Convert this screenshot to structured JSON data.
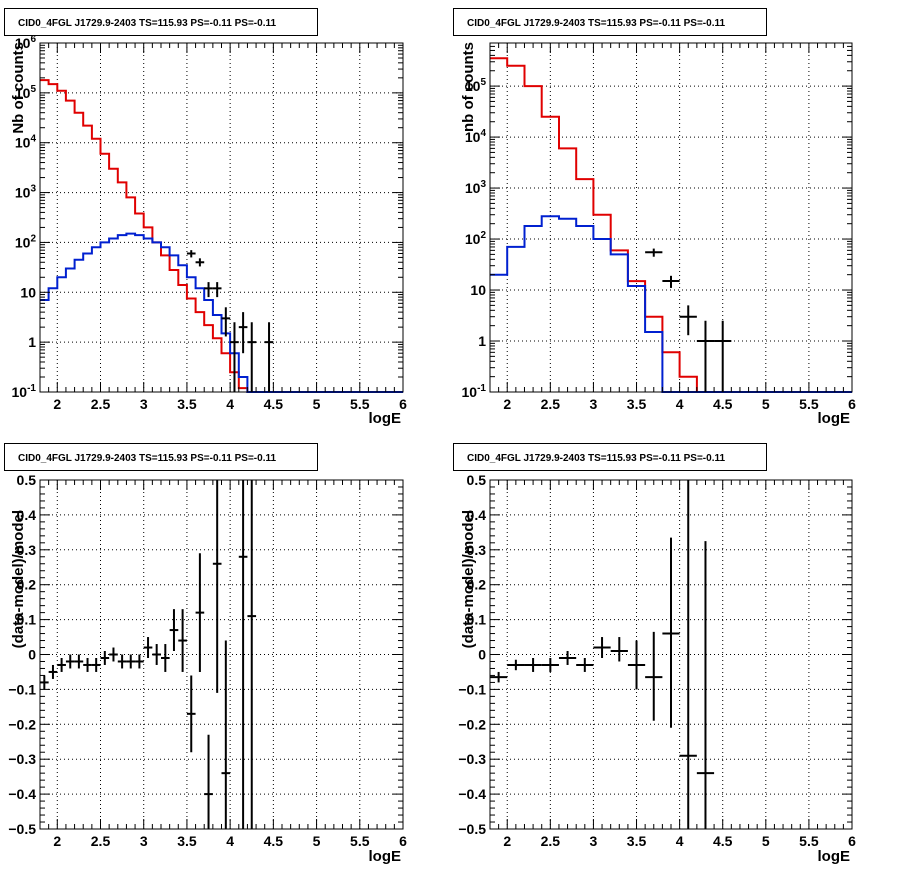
{
  "panels": [
    {
      "title": "CID0_4FGL J1729.9-2403 TS=115.93 PS=-0.11 PS=-0.11",
      "xlabel": "logE",
      "ylabel": "Nb of counts"
    },
    {
      "title": "CID0_4FGL J1729.9-2403 TS=115.93 PS=-0.11 PS=-0.11",
      "xlabel": "logE",
      "ylabel": "nb of counts"
    },
    {
      "title": "CID0_4FGL J1729.9-2403 TS=115.93 PS=-0.11 PS=-0.11",
      "xlabel": "logE",
      "ylabel": "(data-model)/model"
    },
    {
      "title": "CID0_4FGL J1729.9-2403 TS=115.93 PS=-0.11 PS=-0.11",
      "xlabel": "logE",
      "ylabel": "(data-model)/model"
    }
  ],
  "colors": {
    "total_model": "#e00000",
    "source_model": "#0020d0",
    "data": "#000000",
    "grid": "#000000"
  },
  "chart_data": [
    {
      "type": "step-histogram",
      "title": "CID0_4FGL J1729.9-2403 TS=115.93 PS=-0.11 PS=-0.11",
      "xlabel": "logE",
      "ylabel": "Nb of counts",
      "xlim": [
        1.8,
        6.0
      ],
      "ylim": [
        0.1,
        1000000
      ],
      "yscale": "log",
      "grid": true,
      "x_ticks": [
        2,
        2.5,
        3,
        3.5,
        4,
        4.5,
        5,
        5.5,
        6
      ],
      "x_tick_labels": [
        "2",
        "2.5",
        "3",
        "3.5",
        "4",
        "4.5",
        "5",
        "5.5",
        "6"
      ],
      "y_ticks": [
        0.1,
        1,
        10,
        100,
        1000,
        10000,
        100000,
        1000000
      ],
      "y_tick_labels": [
        "10^-1",
        "1",
        "10",
        "10^2",
        "10^3",
        "10^4",
        "10^5",
        "10^6"
      ],
      "bin_edges": [
        1.8,
        1.9,
        2.0,
        2.1,
        2.2,
        2.3,
        2.4,
        2.5,
        2.6,
        2.7,
        2.8,
        2.9,
        3.0,
        3.1,
        3.2,
        3.3,
        3.4,
        3.5,
        3.6,
        3.7,
        3.8,
        3.9,
        4.0,
        4.1,
        4.2,
        4.3,
        4.4,
        4.5,
        4.6,
        4.7,
        4.8,
        4.9,
        5.0,
        5.1,
        5.2,
        5.3,
        5.4,
        5.5,
        5.6,
        5.7,
        5.8,
        5.9,
        6.0
      ],
      "series": [
        {
          "role": "total_model",
          "values": [
            180000,
            150000,
            110000,
            70000,
            40000,
            22000,
            12000,
            6000,
            3000,
            1600,
            800,
            380,
            200,
            100,
            55,
            28,
            14,
            7.5,
            4,
            2.2,
            1.2,
            0.6,
            0.25,
            0.12,
            0.1,
            0.1,
            0.1,
            0.1,
            0.1,
            0.1,
            0.1,
            0.1,
            0.1,
            0.1,
            0.1,
            0.1,
            0.1,
            0.1,
            0.1,
            0.1,
            0.1,
            0.1
          ]
        },
        {
          "role": "source_model",
          "values": [
            7,
            12,
            20,
            30,
            45,
            60,
            80,
            100,
            120,
            140,
            150,
            140,
            120,
            100,
            80,
            55,
            35,
            20,
            12,
            7,
            3.5,
            1.5,
            0.6,
            0.2,
            0.1,
            0.1,
            0.1,
            0.1,
            0.1,
            0.1,
            0.1,
            0.1,
            0.1,
            0.1,
            0.1,
            0.1,
            0.1,
            0.1,
            0.1,
            0.1,
            0.1,
            0.1
          ]
        },
        {
          "role": "data",
          "points": [
            {
              "x": 3.55,
              "y": 60,
              "xerr": 0.05,
              "ylo": 50,
              "yhi": 70
            },
            {
              "x": 3.65,
              "y": 40,
              "xerr": 0.05,
              "ylo": 33,
              "yhi": 48
            },
            {
              "x": 3.75,
              "y": 12,
              "xerr": 0.05,
              "ylo": 8,
              "yhi": 16
            },
            {
              "x": 3.85,
              "y": 12,
              "xerr": 0.05,
              "ylo": 8,
              "yhi": 16
            },
            {
              "x": 3.95,
              "y": 3,
              "xerr": 0.05,
              "ylo": 1.3,
              "yhi": 5
            },
            {
              "x": 4.05,
              "y": 1,
              "xerr": 0.05,
              "ylo": 0.1,
              "yhi": 2.5
            },
            {
              "x": 4.15,
              "y": 2,
              "xerr": 0.05,
              "ylo": 0.6,
              "yhi": 4
            },
            {
              "x": 4.25,
              "y": 1,
              "xerr": 0.05,
              "ylo": 0.1,
              "yhi": 2.5
            },
            {
              "x": 4.45,
              "y": 1,
              "xerr": 0.05,
              "ylo": 0.1,
              "yhi": 2.5
            }
          ]
        }
      ]
    },
    {
      "type": "step-histogram",
      "title": "CID0_4FGL J1729.9-2403 TS=115.93 PS=-0.11 PS=-0.11",
      "xlabel": "logE",
      "ylabel": "nb of counts",
      "xlim": [
        1.8,
        6.0
      ],
      "ylim": [
        0.1,
        700000
      ],
      "yscale": "log",
      "grid": true,
      "x_ticks": [
        2,
        2.5,
        3,
        3.5,
        4,
        4.5,
        5,
        5.5,
        6
      ],
      "x_tick_labels": [
        "2",
        "2.5",
        "3",
        "3.5",
        "4",
        "4.5",
        "5",
        "5.5",
        "6"
      ],
      "y_ticks": [
        0.1,
        1,
        10,
        100,
        1000,
        10000,
        100000
      ],
      "y_tick_labels": [
        "10^-1",
        "1",
        "10",
        "10^2",
        "10^3",
        "10^4",
        "10^5"
      ],
      "bin_edges": [
        1.8,
        2.0,
        2.2,
        2.4,
        2.6,
        2.8,
        3.0,
        3.2,
        3.4,
        3.6,
        3.8,
        4.0,
        4.2,
        4.4,
        4.6,
        4.8,
        5.0,
        5.2,
        5.4,
        5.6,
        5.8,
        6.0
      ],
      "series": [
        {
          "role": "total_model",
          "values": [
            350000,
            250000,
            100000,
            25000,
            6000,
            1500,
            300,
            60,
            15,
            3,
            0.6,
            0.2,
            0.1,
            0.1,
            0.1,
            0.1,
            0.1,
            0.1,
            0.1,
            0.1,
            0.1
          ]
        },
        {
          "role": "source_model",
          "values": [
            20,
            70,
            180,
            280,
            250,
            180,
            100,
            50,
            12,
            1.5,
            0.1,
            0.1,
            0.1,
            0.1,
            0.1,
            0.1,
            0.1,
            0.1,
            0.1,
            0.1,
            0.1
          ]
        },
        {
          "role": "data",
          "points": [
            {
              "x": 3.7,
              "y": 55,
              "xerr": 0.1,
              "ylo": 45,
              "yhi": 65
            },
            {
              "x": 3.9,
              "y": 15,
              "xerr": 0.1,
              "ylo": 11,
              "yhi": 19
            },
            {
              "x": 4.1,
              "y": 3,
              "xerr": 0.1,
              "ylo": 1.3,
              "yhi": 5
            },
            {
              "x": 4.3,
              "y": 1,
              "xerr": 0.1,
              "ylo": 0.1,
              "yhi": 2.5
            },
            {
              "x": 4.5,
              "y": 1,
              "xerr": 0.1,
              "ylo": 0.1,
              "yhi": 2.5
            }
          ]
        }
      ]
    },
    {
      "type": "scatter",
      "title": "CID0_4FGL J1729.9-2403 TS=115.93 PS=-0.11 PS=-0.11",
      "xlabel": "logE",
      "ylabel": "(data-model)/model",
      "xlim": [
        1.8,
        6.0
      ],
      "ylim": [
        -0.5,
        0.5
      ],
      "grid": true,
      "x_ticks": [
        2,
        2.5,
        3,
        3.5,
        4,
        4.5,
        5,
        5.5,
        6
      ],
      "x_tick_labels": [
        "2",
        "2.5",
        "3",
        "3.5",
        "4",
        "4.5",
        "5",
        "5.5",
        "6"
      ],
      "y_ticks": [
        -0.5,
        -0.4,
        -0.3,
        -0.2,
        -0.1,
        0,
        0.1,
        0.2,
        0.3,
        0.4,
        0.5
      ],
      "y_tick_labels": [
        "−0.5",
        "−0.4",
        "−0.3",
        "−0.2",
        "−0.1",
        "0",
        "0.1",
        "0.2",
        "0.3",
        "0.4",
        "0.5"
      ],
      "points": [
        {
          "x": 1.85,
          "y": -0.08,
          "xerr": 0.05,
          "ylo": -0.1,
          "yhi": -0.06
        },
        {
          "x": 1.95,
          "y": -0.05,
          "xerr": 0.05,
          "ylo": -0.07,
          "yhi": -0.03
        },
        {
          "x": 2.05,
          "y": -0.03,
          "xerr": 0.05,
          "ylo": -0.05,
          "yhi": -0.01
        },
        {
          "x": 2.15,
          "y": -0.02,
          "xerr": 0.05,
          "ylo": -0.04,
          "yhi": 0.0
        },
        {
          "x": 2.25,
          "y": -0.02,
          "xerr": 0.05,
          "ylo": -0.04,
          "yhi": 0.0
        },
        {
          "x": 2.35,
          "y": -0.03,
          "xerr": 0.05,
          "ylo": -0.05,
          "yhi": -0.01
        },
        {
          "x": 2.45,
          "y": -0.03,
          "xerr": 0.05,
          "ylo": -0.05,
          "yhi": -0.01
        },
        {
          "x": 2.55,
          "y": -0.01,
          "xerr": 0.05,
          "ylo": -0.03,
          "yhi": 0.01
        },
        {
          "x": 2.65,
          "y": 0.0,
          "xerr": 0.05,
          "ylo": -0.02,
          "yhi": 0.02
        },
        {
          "x": 2.75,
          "y": -0.02,
          "xerr": 0.05,
          "ylo": -0.04,
          "yhi": 0.0
        },
        {
          "x": 2.85,
          "y": -0.02,
          "xerr": 0.05,
          "ylo": -0.04,
          "yhi": 0.0
        },
        {
          "x": 2.95,
          "y": -0.02,
          "xerr": 0.05,
          "ylo": -0.04,
          "yhi": 0.0
        },
        {
          "x": 3.05,
          "y": 0.02,
          "xerr": 0.05,
          "ylo": -0.01,
          "yhi": 0.05
        },
        {
          "x": 3.15,
          "y": 0.0,
          "xerr": 0.05,
          "ylo": -0.03,
          "yhi": 0.03
        },
        {
          "x": 3.25,
          "y": -0.01,
          "xerr": 0.05,
          "ylo": -0.05,
          "yhi": 0.03
        },
        {
          "x": 3.35,
          "y": 0.07,
          "xerr": 0.05,
          "ylo": 0.01,
          "yhi": 0.13
        },
        {
          "x": 3.45,
          "y": 0.04,
          "xerr": 0.05,
          "ylo": -0.05,
          "yhi": 0.13
        },
        {
          "x": 3.55,
          "y": -0.17,
          "xerr": 0.05,
          "ylo": -0.28,
          "yhi": -0.06
        },
        {
          "x": 3.65,
          "y": 0.12,
          "xerr": 0.05,
          "ylo": -0.05,
          "yhi": 0.29
        },
        {
          "x": 3.75,
          "y": -0.4,
          "xerr": 0.05,
          "ylo": -0.5,
          "yhi": -0.23
        },
        {
          "x": 3.85,
          "y": 0.26,
          "xerr": 0.05,
          "ylo": -0.11,
          "yhi": 0.5
        },
        {
          "x": 3.95,
          "y": -0.34,
          "xerr": 0.05,
          "ylo": -0.5,
          "yhi": 0.04
        },
        {
          "x": 4.15,
          "y": 0.28,
          "xerr": 0.05,
          "ylo": -0.5,
          "yhi": 0.5
        },
        {
          "x": 4.25,
          "y": 0.11,
          "xerr": 0.05,
          "ylo": -0.5,
          "yhi": 0.5
        }
      ]
    },
    {
      "type": "scatter",
      "title": "CID0_4FGL J1729.9-2403 TS=115.93 PS=-0.11 PS=-0.11",
      "xlabel": "logE",
      "ylabel": "(data-model)/model",
      "xlim": [
        1.8,
        6.0
      ],
      "ylim": [
        -0.5,
        0.5
      ],
      "grid": true,
      "x_ticks": [
        2,
        2.5,
        3,
        3.5,
        4,
        4.5,
        5,
        5.5,
        6
      ],
      "x_tick_labels": [
        "2",
        "2.5",
        "3",
        "3.5",
        "4",
        "4.5",
        "5",
        "5.5",
        "6"
      ],
      "y_ticks": [
        -0.5,
        -0.4,
        -0.3,
        -0.2,
        -0.1,
        0,
        0.1,
        0.2,
        0.3,
        0.4,
        0.5
      ],
      "y_tick_labels": [
        "−0.5",
        "−0.4",
        "−0.3",
        "−0.2",
        "−0.1",
        "0",
        "0.1",
        "0.2",
        "0.3",
        "0.4",
        "0.5"
      ],
      "points": [
        {
          "x": 1.9,
          "y": -0.065,
          "xerr": 0.1,
          "ylo": -0.08,
          "yhi": -0.05
        },
        {
          "x": 2.1,
          "y": -0.03,
          "xerr": 0.1,
          "ylo": -0.045,
          "yhi": -0.015
        },
        {
          "x": 2.3,
          "y": -0.03,
          "xerr": 0.1,
          "ylo": -0.05,
          "yhi": -0.01
        },
        {
          "x": 2.5,
          "y": -0.03,
          "xerr": 0.1,
          "ylo": -0.05,
          "yhi": -0.01
        },
        {
          "x": 2.7,
          "y": -0.01,
          "xerr": 0.1,
          "ylo": -0.03,
          "yhi": 0.01
        },
        {
          "x": 2.9,
          "y": -0.03,
          "xerr": 0.1,
          "ylo": -0.05,
          "yhi": -0.01
        },
        {
          "x": 3.1,
          "y": 0.02,
          "xerr": 0.1,
          "ylo": -0.01,
          "yhi": 0.05
        },
        {
          "x": 3.3,
          "y": 0.01,
          "xerr": 0.1,
          "ylo": -0.02,
          "yhi": 0.05
        },
        {
          "x": 3.5,
          "y": -0.03,
          "xerr": 0.1,
          "ylo": -0.1,
          "yhi": 0.04
        },
        {
          "x": 3.7,
          "y": -0.065,
          "xerr": 0.1,
          "ylo": -0.19,
          "yhi": 0.065
        },
        {
          "x": 3.9,
          "y": 0.06,
          "xerr": 0.1,
          "ylo": -0.21,
          "yhi": 0.335
        },
        {
          "x": 4.1,
          "y": -0.29,
          "xerr": 0.1,
          "ylo": -0.5,
          "yhi": 0.5
        },
        {
          "x": 4.3,
          "y": -0.34,
          "xerr": 0.1,
          "ylo": -0.5,
          "yhi": 0.325
        }
      ]
    }
  ]
}
